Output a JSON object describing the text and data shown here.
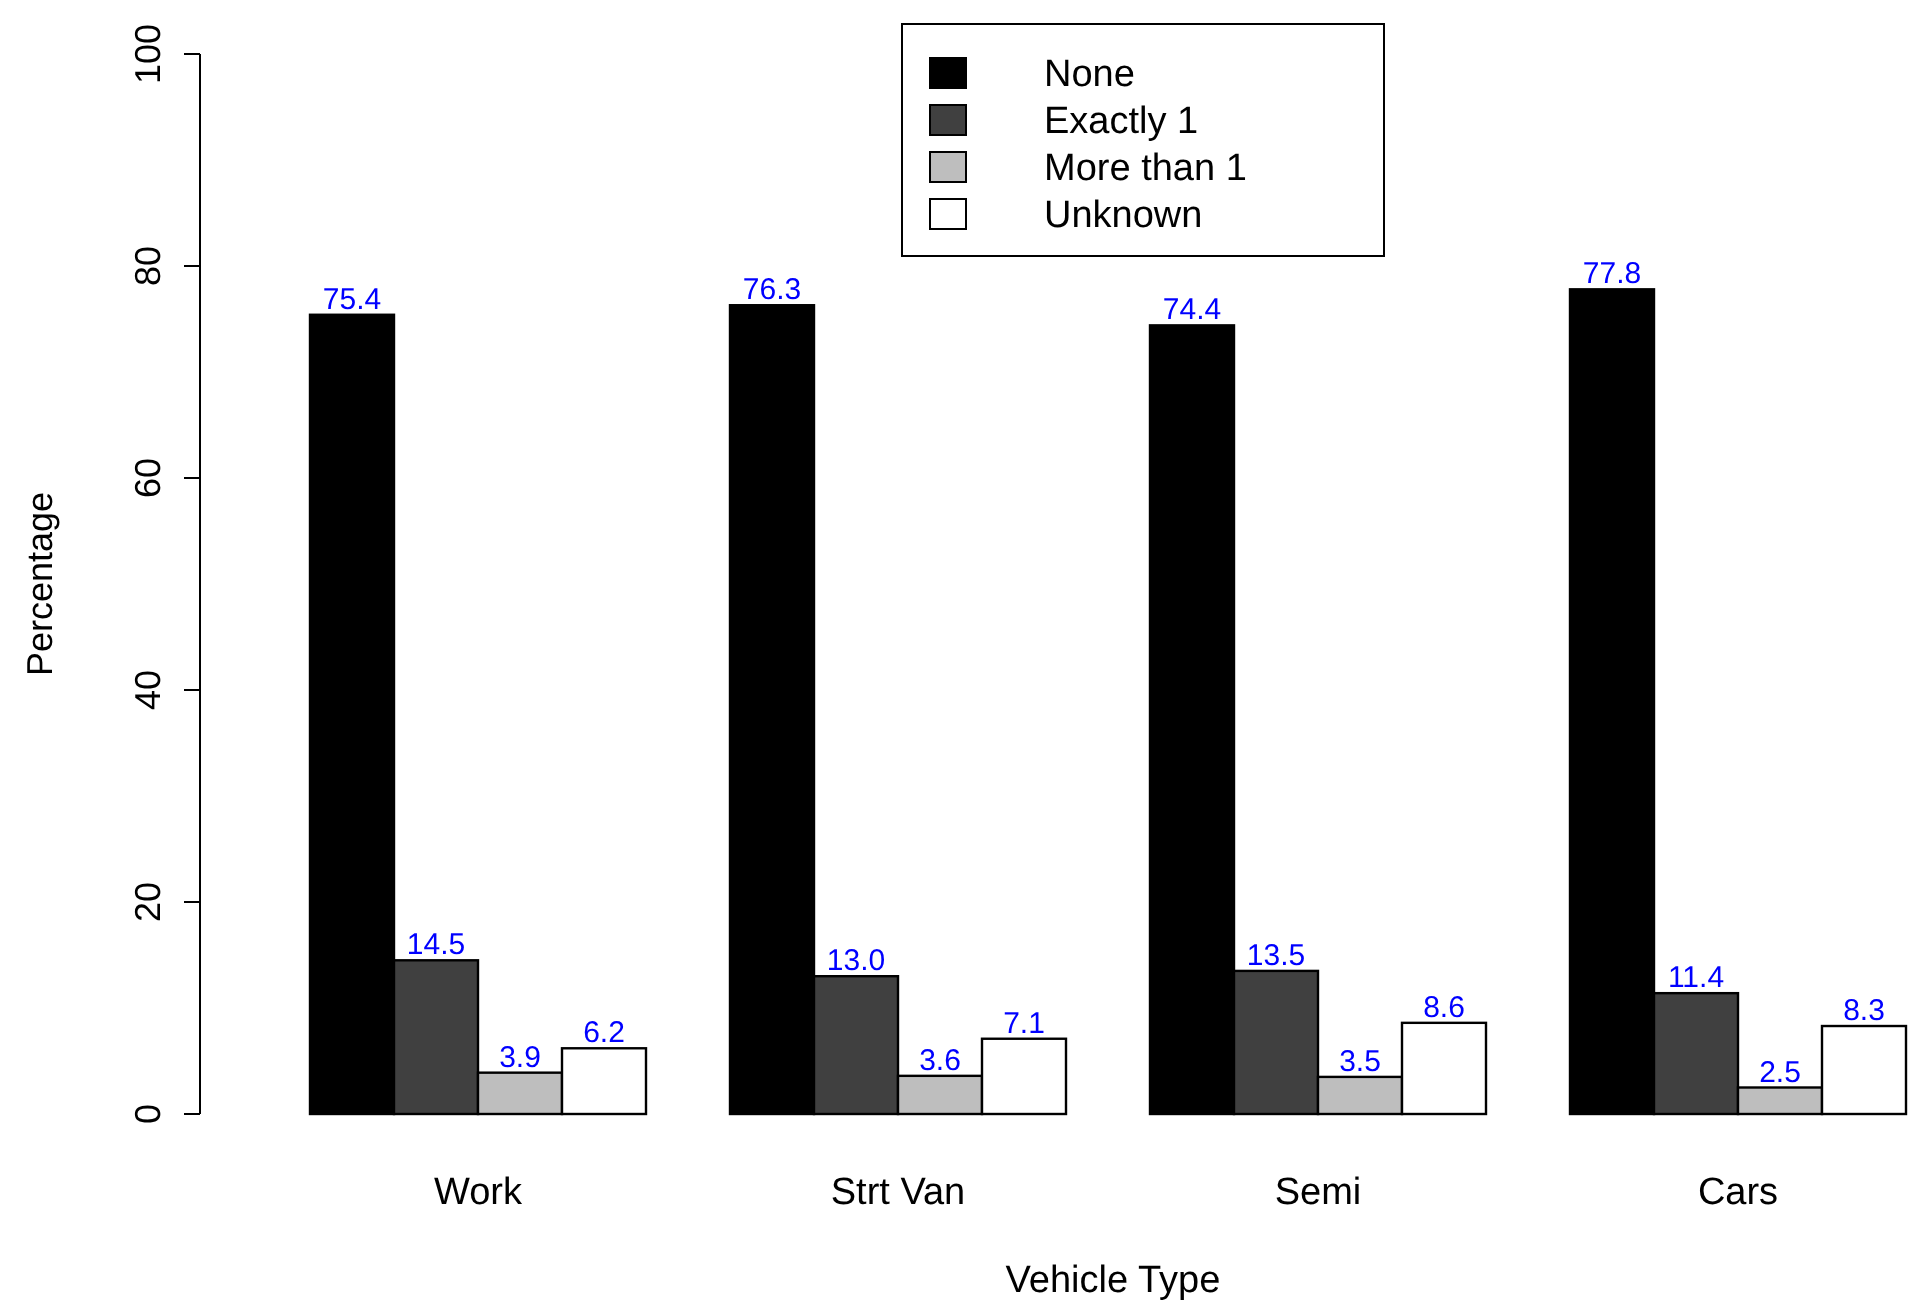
{
  "chart_data": {
    "type": "bar",
    "xlabel": "Vehicle Type",
    "ylabel": "Percentage",
    "categories": [
      "Work",
      "Strt Van",
      "Semi",
      "Cars"
    ],
    "series": [
      {
        "name": "None",
        "color": "#000000",
        "values": [
          75.4,
          76.3,
          74.4,
          77.8
        ],
        "value_labels": [
          "75.4",
          "76.3",
          "74.4",
          "77.8"
        ]
      },
      {
        "name": "Exactly 1",
        "color": "#404040",
        "values": [
          14.5,
          13.0,
          13.5,
          11.4
        ],
        "value_labels": [
          "14.5",
          "13.0",
          "13.5",
          "11.4"
        ]
      },
      {
        "name": "More than 1",
        "color": "#bebebe",
        "values": [
          3.9,
          3.6,
          3.5,
          2.5
        ],
        "value_labels": [
          "3.9",
          "3.6",
          "3.5",
          "2.5"
        ]
      },
      {
        "name": "Unknown",
        "color": "#ffffff",
        "values": [
          6.2,
          7.1,
          8.6,
          8.3
        ],
        "value_labels": [
          "6.2",
          "7.1",
          "8.6",
          "8.3"
        ]
      }
    ],
    "ylim": [
      0,
      100
    ],
    "yticks": [
      0,
      20,
      40,
      60,
      80,
      100
    ],
    "legend": "top",
    "grid": false
  }
}
